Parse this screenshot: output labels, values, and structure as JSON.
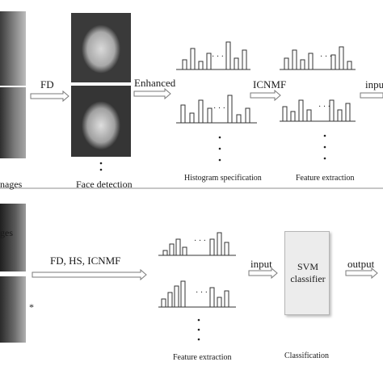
{
  "top": {
    "fd_label": "FD",
    "enhanced_label": "Enhanced",
    "icnmf_label": "ICNMF",
    "input_label": "input",
    "images_caption": "nages",
    "face_detection_caption": "Face detection",
    "histogram_caption": "Histogram specification",
    "feature_caption": "Feature extraction",
    "ellipsis": "· · ·",
    "dot": "•"
  },
  "bottom": {
    "pipeline_label": "FD, HS, ICNMF",
    "input_label": "input",
    "output_label": "output",
    "svm_line1": "SVM",
    "svm_line2": "classifier",
    "images_caption": "ges",
    "feature_caption": "Feature extraction",
    "classification_caption": "Classification",
    "asterisk": "*",
    "ellipsis": "· · ·"
  },
  "histograms": {
    "top_hs_1": [
      12,
      26,
      10,
      20
    ],
    "top_hs_1b": [
      34,
      14,
      24
    ],
    "top_hs_2": [
      22,
      12,
      28,
      18
    ],
    "top_hs_2b": [
      34,
      10,
      18
    ],
    "top_fe_1": [
      14,
      24,
      12,
      20
    ],
    "top_fe_1b": [
      18,
      28,
      10
    ],
    "top_fe_2": [
      18,
      12,
      26,
      14
    ],
    "top_fe_2b": [
      26,
      14,
      22
    ],
    "bot_fe_1": [
      6,
      14,
      20,
      10
    ],
    "bot_fe_1b": [
      20,
      28,
      16
    ],
    "bot_fe_2": [
      10,
      18,
      26,
      32
    ],
    "bot_fe_2b": [
      24,
      12,
      20
    ]
  }
}
